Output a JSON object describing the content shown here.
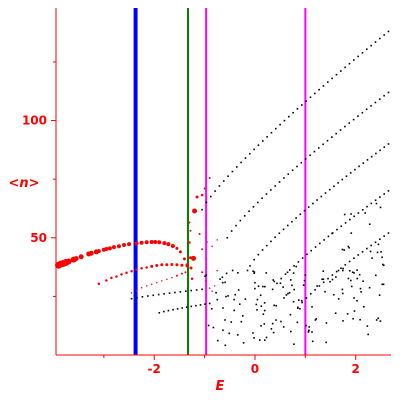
{
  "chart_data": {
    "type": "scatter",
    "xlabel": "E",
    "ylabel": "<n>",
    "xlim": [
      -3.95,
      2.7
    ],
    "ylim": [
      0,
      148
    ],
    "x_ticks": [
      -2,
      0,
      2
    ],
    "x_tick_labels": [
      "-2",
      "0",
      "2"
    ],
    "y_ticks": [
      50,
      100
    ],
    "y_tick_labels": [
      "50",
      "100"
    ],
    "grid": false,
    "axis_color": "#ff0000",
    "vertical_lines": [
      {
        "x": -2.37,
        "color": "#0000ff"
      },
      {
        "x": -1.33,
        "color": "#008000"
      },
      {
        "x": -0.97,
        "color": "#ff00ff"
      },
      {
        "x": 1.0,
        "color": "#ff00ff"
      }
    ],
    "series": [
      {
        "color": "#ff0000",
        "points": [
          [
            -3.9,
            38.3,
            7
          ],
          [
            -3.85,
            38.8,
            7
          ],
          [
            -3.8,
            39.1,
            7
          ],
          [
            -3.75,
            39.5,
            7
          ],
          [
            -3.7,
            39.9,
            6
          ],
          [
            -3.6,
            40.7,
            6
          ],
          [
            -3.55,
            41.1,
            5
          ],
          [
            -3.45,
            41.9,
            5
          ],
          [
            -3.3,
            43.1,
            5
          ],
          [
            -3.25,
            43.4,
            5
          ],
          [
            -3.15,
            44.0,
            5
          ],
          [
            -3.1,
            44.3,
            4
          ],
          [
            -3.0,
            44.9,
            4
          ],
          [
            -2.95,
            45.2,
            4
          ],
          [
            -2.88,
            45.5,
            4
          ],
          [
            -2.8,
            46.0,
            4
          ],
          [
            -2.7,
            46.4,
            4
          ],
          [
            -2.6,
            46.9,
            4
          ],
          [
            -2.5,
            47.3,
            4
          ],
          [
            -2.35,
            47.6,
            4
          ],
          [
            -2.25,
            47.9,
            4
          ],
          [
            -2.15,
            48.1,
            4
          ],
          [
            -2.05,
            48.2,
            4
          ],
          [
            -1.98,
            48.2,
            4
          ],
          [
            -1.9,
            48.1,
            4
          ],
          [
            -1.8,
            47.7,
            4
          ],
          [
            -1.72,
            47.3,
            4
          ],
          [
            -1.63,
            46.5,
            4
          ],
          [
            -1.55,
            45.5,
            3
          ],
          [
            -1.48,
            44.0,
            3
          ],
          [
            -1.4,
            41.0,
            3
          ],
          [
            -1.35,
            38.5,
            3
          ],
          [
            -3.1,
            30.4,
            2.5
          ],
          [
            -2.95,
            31.8,
            2.5
          ],
          [
            -2.85,
            32.9,
            2.5
          ],
          [
            -2.75,
            33.5,
            2.5
          ],
          [
            -2.65,
            34.4,
            2.5
          ],
          [
            -2.55,
            35.1,
            2.5
          ],
          [
            -2.45,
            35.7,
            2.5
          ],
          [
            -2.35,
            36.4,
            2.5
          ],
          [
            -2.25,
            37.0,
            2.5
          ],
          [
            -2.15,
            37.3,
            2.5
          ],
          [
            -2.05,
            37.8,
            3
          ],
          [
            -1.95,
            38.2,
            3
          ],
          [
            -1.85,
            38.5,
            3
          ],
          [
            -1.75,
            38.5,
            3
          ],
          [
            -1.65,
            38.6,
            3
          ],
          [
            -1.55,
            38.5,
            3
          ],
          [
            -1.45,
            38.3,
            3
          ],
          [
            -1.35,
            38.0,
            3
          ],
          [
            -2.45,
            26.5,
            1.5
          ],
          [
            -2.35,
            27.3,
            1.5
          ],
          [
            -2.25,
            28.7,
            1.5
          ],
          [
            -2.15,
            29.5,
            1.5
          ],
          [
            -2.05,
            30.2,
            1.5
          ],
          [
            -1.95,
            30.8,
            1.5
          ],
          [
            -1.85,
            31.6,
            1.5
          ],
          [
            -1.75,
            32.3,
            1.5
          ],
          [
            -1.65,
            33.0,
            1.5
          ],
          [
            -1.55,
            33.8,
            2
          ],
          [
            -1.45,
            34.7,
            2
          ],
          [
            -1.38,
            35.3,
            2
          ],
          [
            -1.2,
            61.4,
            5
          ],
          [
            -1.15,
            67.4,
            3
          ],
          [
            -1.05,
            68.2,
            2.5
          ],
          [
            -1.0,
            71.0,
            2
          ],
          [
            -0.9,
            75.5,
            2
          ],
          [
            -1.3,
            48.0,
            2.5
          ],
          [
            -1.28,
            41.5,
            3
          ],
          [
            -1.22,
            41.2,
            5
          ],
          [
            -1.27,
            37.1,
            3
          ],
          [
            -1.25,
            32.5,
            2.5
          ],
          [
            -1.28,
            53.0,
            2
          ],
          [
            -1.3,
            56.5,
            2
          ],
          [
            -1.1,
            51.6,
            2
          ],
          [
            -1.05,
            45.1,
            2
          ],
          [
            -0.95,
            48.2,
            1.5
          ],
          [
            -0.85,
            46.4,
            1.5
          ],
          [
            -0.75,
            49.1,
            1.5
          ],
          [
            -1.05,
            35.3,
            2
          ],
          [
            -0.98,
            31.6,
            1.5
          ],
          [
            -0.9,
            28.5,
            1.5
          ],
          [
            -0.85,
            27.2,
            1.5
          ],
          [
            -0.8,
            29.5,
            1.5
          ],
          [
            -0.75,
            36.0,
            1.5
          ]
        ]
      },
      {
        "color": "#000000",
        "points": []
      }
    ]
  }
}
